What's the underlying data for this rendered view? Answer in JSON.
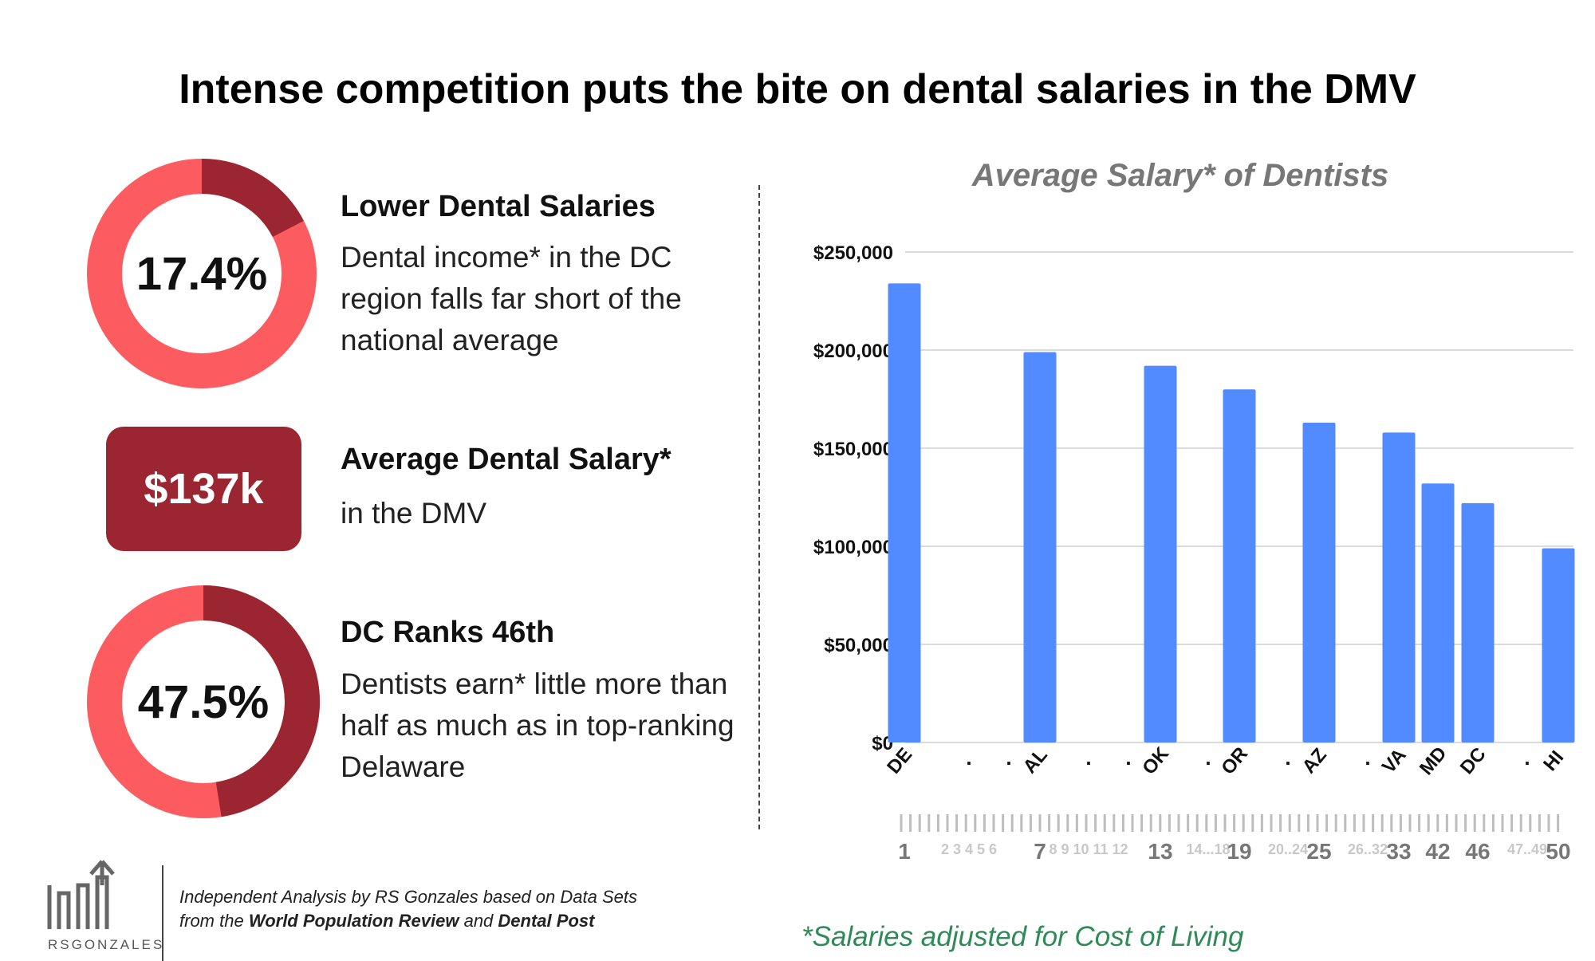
{
  "title": "Intense competition puts the bite on dental salaries in the DMV",
  "stats": [
    {
      "value": "17.4%",
      "heading": "Lower Dental Salaries",
      "description": "Dental income* in the DC region falls far short of the national average",
      "ring_fraction": 0.174
    },
    {
      "value": "$137k",
      "heading": "Average Dental Salary*",
      "description": "in the DMV"
    },
    {
      "value": "47.5%",
      "heading": "DC Ranks 46th",
      "description": "Dentists earn* little more than half as much as in top-ranking Delaware",
      "ring_fraction": 0.475
    }
  ],
  "colors": {
    "ring_light": "#fc5b5f",
    "ring_dark": "#9b2631",
    "bar": "#528bff",
    "footnote": "#2e8b57"
  },
  "chart_data": {
    "type": "bar",
    "title": "Average Salary* of Dentists",
    "categories": [
      "DE",
      ".",
      ".",
      "AL",
      ".",
      ".",
      "OK",
      ".",
      "OR",
      ".",
      "AZ",
      ".",
      "VA",
      "MD",
      "DC",
      ".",
      "HI"
    ],
    "values": [
      234000,
      null,
      null,
      199000,
      null,
      null,
      192000,
      null,
      180000,
      null,
      163000,
      null,
      158000,
      132000,
      122000,
      null,
      99000
    ],
    "rank_labels": [
      "1",
      "2 3 4 5 6",
      "",
      "7",
      "8 9 10 11 12",
      "",
      "13",
      "14...18",
      "19",
      "20..24",
      "25",
      "26..32",
      "33",
      "42",
      "46",
      "47..49",
      "50"
    ],
    "ylim": [
      0,
      250000
    ],
    "yticks": [
      "$0",
      "$50,000",
      "$100,000",
      "$150,000",
      "$200,000",
      "$250,000"
    ],
    "grid": true
  },
  "footer": {
    "logo_text": "RSGONZALES",
    "source_line1": "Independent Analysis by RS Gonzales based on Data Sets",
    "source_line2_prefix": "from the",
    "source_bold1": "World Population Review",
    "source_and": "and",
    "source_bold2": "Dental Post",
    "footnote": "*Salaries adjusted for Cost of Living"
  }
}
